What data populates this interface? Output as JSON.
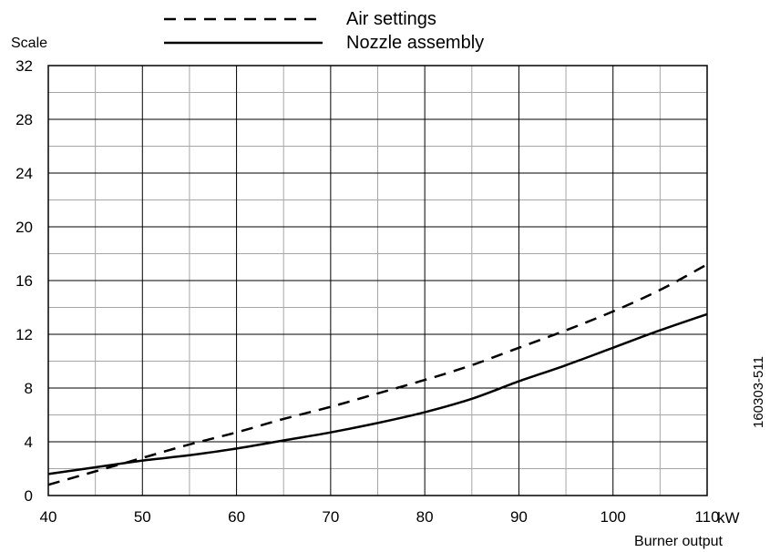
{
  "chart_data": {
    "type": "line",
    "x_axis": {
      "label": "Burner output",
      "unit": "kW",
      "range": [
        40,
        110
      ],
      "ticks": [
        40,
        50,
        60,
        70,
        80,
        90,
        100,
        110
      ],
      "tick_labels": [
        "40",
        "50",
        "60",
        "70",
        "80",
        "90",
        "100",
        "110"
      ]
    },
    "y_axis": {
      "label": "Scale",
      "range": [
        0,
        32
      ],
      "ticks": [
        0,
        4,
        8,
        12,
        16,
        20,
        24,
        28,
        32
      ],
      "tick_labels": [
        "0",
        "4",
        "8",
        "12",
        "16",
        "20",
        "24",
        "28",
        "32"
      ]
    },
    "grid": true,
    "legend": {
      "placement": "top"
    },
    "series": [
      {
        "name": "Air settings",
        "style": "dashed",
        "color": "#000000",
        "x": [
          40,
          45,
          50,
          55,
          60,
          65,
          70,
          75,
          80,
          85,
          90,
          95,
          100,
          105,
          110
        ],
        "y": [
          0.8,
          1.8,
          2.8,
          3.8,
          4.7,
          5.7,
          6.6,
          7.6,
          8.6,
          9.7,
          11.0,
          12.3,
          13.7,
          15.3,
          17.2
        ]
      },
      {
        "name": "Nozzle assembly",
        "style": "solid",
        "color": "#000000",
        "x": [
          40,
          45,
          50,
          55,
          60,
          65,
          70,
          75,
          80,
          85,
          90,
          95,
          100,
          105,
          110
        ],
        "y": [
          1.6,
          2.1,
          2.6,
          3.0,
          3.5,
          4.1,
          4.7,
          5.4,
          6.2,
          7.2,
          8.5,
          9.7,
          11.0,
          12.3,
          13.5
        ]
      }
    ]
  },
  "figure_code": "160303-511"
}
